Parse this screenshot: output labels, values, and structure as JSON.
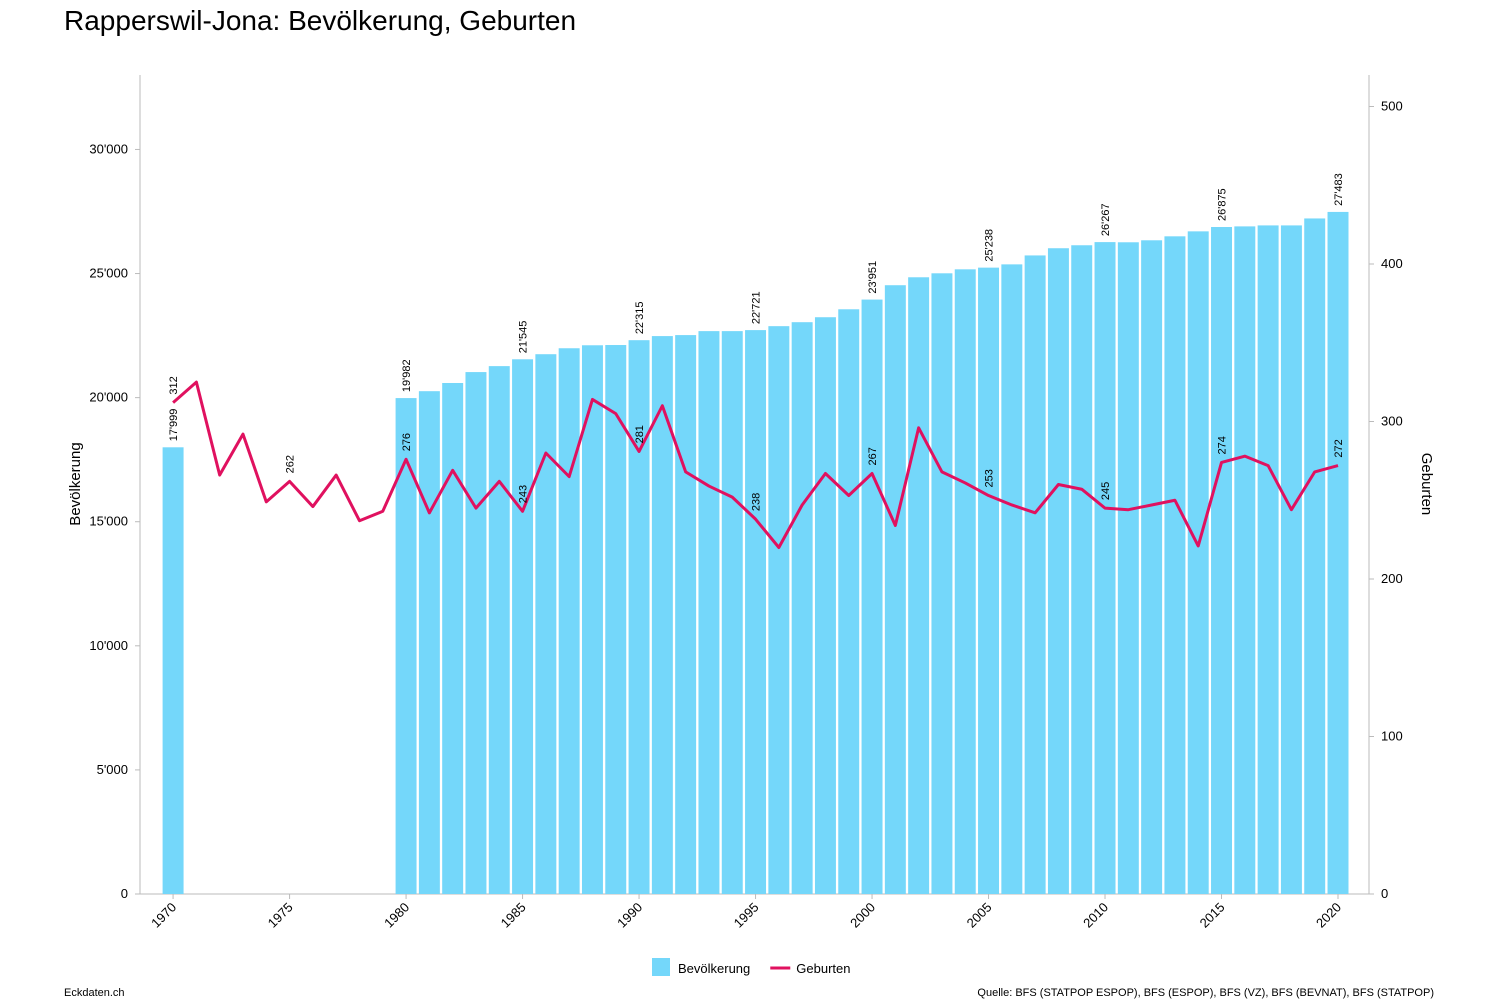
{
  "chart_data": {
    "type": "combo",
    "title": "Rapperswil-Jona: Bevölkerung, Geburten",
    "ylabel": "Bevölkerung",
    "y2label": "Geburten",
    "credit": "Eckdaten.ch",
    "source": "Quelle: BFS (STATPOP ESPOP), BFS (ESPOP), BFS (VZ), BFS (BEVNAT), BFS (STATPOP)",
    "x": [
      1970,
      1971,
      1972,
      1973,
      1974,
      1975,
      1976,
      1977,
      1978,
      1979,
      1980,
      1981,
      1982,
      1983,
      1984,
      1985,
      1986,
      1987,
      1988,
      1989,
      1990,
      1991,
      1992,
      1993,
      1994,
      1995,
      1996,
      1997,
      1998,
      1999,
      2000,
      2001,
      2002,
      2003,
      2004,
      2005,
      2006,
      2007,
      2008,
      2009,
      2010,
      2011,
      2012,
      2013,
      2014,
      2015,
      2016,
      2017,
      2018,
      2019,
      2020
    ],
    "xlim": [
      1968.58,
      2021.33
    ],
    "xticks": [
      1970,
      1975,
      1980,
      1985,
      1990,
      1995,
      2000,
      2005,
      2010,
      2015,
      2020
    ],
    "ylim": [
      0,
      33000
    ],
    "yticks": [
      0,
      {
        "value": 5000,
        "label": "5'000"
      },
      {
        "value": 10000,
        "label": "10'000"
      },
      {
        "value": 15000,
        "label": "15'000"
      },
      {
        "value": 20000,
        "label": "20'000"
      },
      {
        "value": 25000,
        "label": "25'000"
      },
      {
        "value": 30000,
        "label": "30'000"
      }
    ],
    "y2lim": [
      0,
      520
    ],
    "y2ticks": [
      0,
      100,
      200,
      300,
      400,
      500
    ],
    "series": [
      {
        "name": "Bevölkerung",
        "type": "bar",
        "color": "#74d7fa",
        "values": [
          17999,
          null,
          null,
          null,
          null,
          null,
          null,
          null,
          null,
          null,
          19982,
          20260,
          20590,
          21030,
          21270,
          21545,
          21750,
          21990,
          22110,
          22120,
          22315,
          22480,
          22520,
          22680,
          22680,
          22721,
          22880,
          23040,
          23240,
          23560,
          23951,
          24530,
          24850,
          25010,
          25170,
          25238,
          25370,
          25730,
          26020,
          26140,
          26267,
          26260,
          26340,
          26500,
          26700,
          26875,
          26900,
          26940,
          26940,
          27220,
          27483
        ],
        "value_labels": [
          "17'999",
          null,
          null,
          null,
          null,
          null,
          null,
          null,
          null,
          null,
          "19'982",
          null,
          null,
          null,
          null,
          "21'545",
          null,
          null,
          null,
          null,
          "22'315",
          null,
          null,
          null,
          null,
          "22'721",
          null,
          null,
          null,
          null,
          "23'951",
          null,
          null,
          null,
          null,
          "25'238",
          null,
          null,
          null,
          null,
          "26'267",
          null,
          null,
          null,
          null,
          "26'875",
          null,
          null,
          null,
          null,
          "27'483"
        ]
      },
      {
        "name": "Geburten",
        "type": "line",
        "axis": "y2",
        "color": "#e0115f",
        "values": [
          312,
          325,
          266,
          292,
          249,
          262,
          246,
          266,
          237,
          243,
          276,
          242,
          269,
          245,
          262,
          243,
          280,
          265,
          314,
          305,
          281,
          310,
          268,
          259,
          252,
          238,
          220,
          247,
          267,
          253,
          267,
          234,
          296,
          268,
          261,
          253,
          247,
          242,
          260,
          257,
          245,
          244,
          247,
          250,
          221,
          274,
          278,
          272,
          244,
          268,
          272
        ],
        "value_labels": [
          "312",
          null,
          null,
          null,
          null,
          "262",
          null,
          null,
          null,
          null,
          "276",
          null,
          null,
          null,
          null,
          "243",
          null,
          null,
          null,
          null,
          "281",
          null,
          null,
          null,
          null,
          "238",
          null,
          null,
          null,
          null,
          "267",
          null,
          null,
          null,
          null,
          "253",
          null,
          null,
          null,
          null,
          "245",
          null,
          null,
          null,
          null,
          "274",
          null,
          null,
          null,
          null,
          "272"
        ]
      }
    ]
  }
}
